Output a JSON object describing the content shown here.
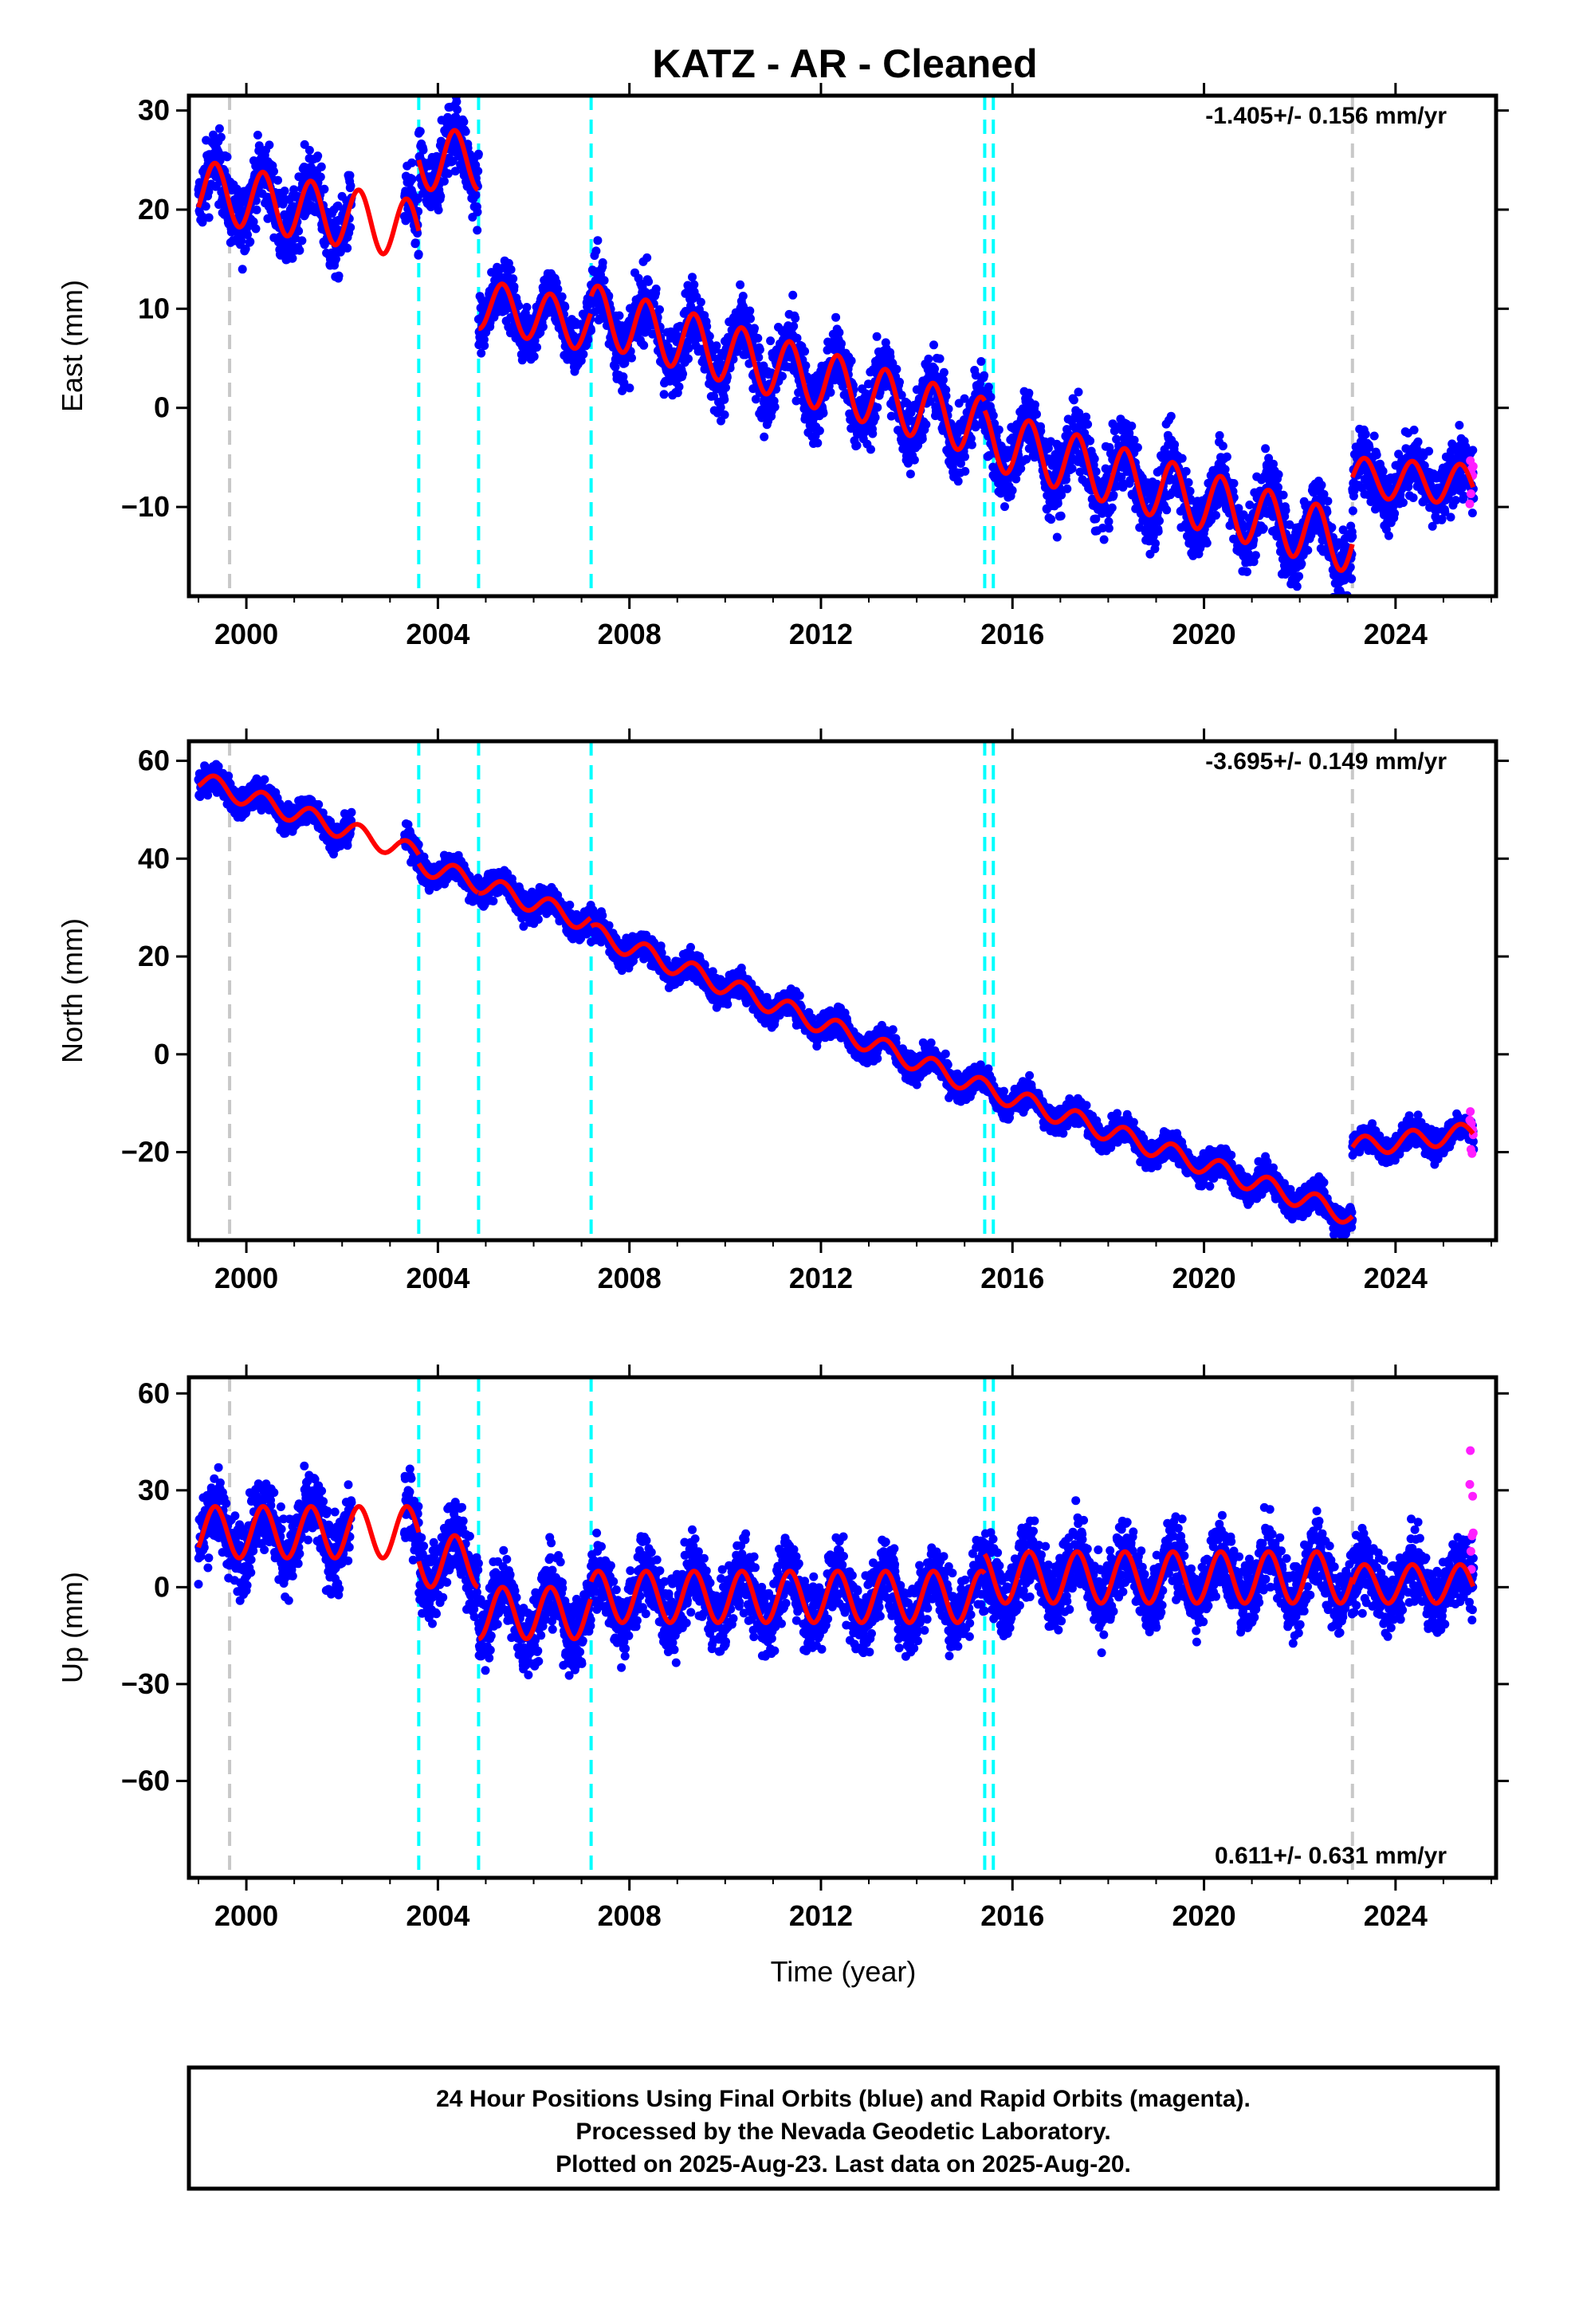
{
  "figure": {
    "title": "KATZ  - AR - Cleaned",
    "xlabel": "Time (year)",
    "footer": [
      "24 Hour Positions Using Final Orbits (blue) and Rapid Orbits (magenta).",
      "Processed by the Nevada Geodetic Laboratory.",
      "Plotted on 2025-Aug-23. Last data on 2025-Aug-20."
    ],
    "colors": {
      "final_orbits": "#0000ff",
      "rapid_orbits": "#ff1eff",
      "model": "#ff0000",
      "equipment_change": "#00ffff",
      "other_event": "#c8c8c8"
    },
    "xlim": [
      1998.8,
      2026.1
    ],
    "xticks": [
      2000,
      2004,
      2008,
      2012,
      2016,
      2020,
      2024
    ],
    "event_lines": {
      "gray": [
        1999.65,
        2023.1
      ],
      "cyan": [
        2003.6,
        2004.85,
        2007.2,
        2015.42,
        2015.6
      ]
    }
  },
  "chart_data": [
    {
      "type": "scatter",
      "ylabel": "East (mm)",
      "rate": "-1.405+/- 0.156 mm/yr",
      "rate_pos": "top-right",
      "ylim": [
        -19,
        31.5
      ],
      "yticks": [
        -10,
        0,
        10,
        20,
        30
      ],
      "segments": [
        [
          1999.0,
          2003.6,
          22,
          -0.9,
          3,
          2.5
        ],
        [
          2003.6,
          2004.85,
          25,
          0,
          3,
          2.5
        ],
        [
          2004.85,
          2007.2,
          10.5,
          -1.0,
          2.5,
          2.0
        ],
        [
          2007.2,
          2015.42,
          9.5,
          -1.4,
          3,
          2.5
        ],
        [
          2015.42,
          2023.1,
          -3,
          -1.4,
          3,
          2.5
        ],
        [
          2023.1,
          2025.63,
          -7,
          -0.3,
          2,
          2.2
        ]
      ],
      "gaps": [
        [
          2002.2,
          2003.3
        ]
      ],
      "rapid": [
        2025.3,
        2025.63,
        -7,
        3
      ]
    },
    {
      "type": "scatter",
      "ylabel": "North (mm)",
      "rate": "-3.695+/- 0.149 mm/yr",
      "rate_pos": "top-right",
      "ylim": [
        -38,
        64
      ],
      "yticks": [
        -20,
        0,
        20,
        40,
        60
      ],
      "segments": [
        [
          1999.0,
          2003.6,
          56,
          -3.3,
          2,
          2
        ],
        [
          2003.6,
          2004.85,
          39,
          -3.2,
          2,
          2
        ],
        [
          2004.85,
          2007.2,
          35,
          -3.5,
          2,
          2
        ],
        [
          2007.2,
          2015.42,
          25,
          -3.9,
          2,
          2
        ],
        [
          2015.42,
          2023.1,
          -7,
          -3.4,
          2,
          2
        ],
        [
          2023.1,
          2025.63,
          -19,
          1.2,
          2,
          2
        ]
      ],
      "gaps": [
        [
          2002.2,
          2003.3
        ]
      ],
      "rapid": [
        2025.3,
        2025.63,
        -16,
        4
      ]
    },
    {
      "type": "scatter",
      "ylabel": "Up (mm)",
      "rate": "0.611+/- 0.631 mm/yr",
      "rate_pos": "bottom-right",
      "ylim": [
        -90,
        65
      ],
      "yticks": [
        -60,
        -30,
        0,
        30,
        60
      ],
      "segments": [
        [
          1999.0,
          2003.6,
          17,
          0,
          8,
          8
        ],
        [
          2003.6,
          2004.85,
          8,
          0,
          8,
          8
        ],
        [
          2004.85,
          2007.2,
          -8,
          0,
          8,
          8
        ],
        [
          2007.2,
          2015.42,
          -3,
          0,
          8,
          8
        ],
        [
          2015.42,
          2023.1,
          3,
          0,
          8,
          8
        ],
        [
          2023.1,
          2025.63,
          1,
          0,
          6,
          7
        ]
      ],
      "gaps": [
        [
          2002.2,
          2003.3
        ]
      ],
      "rapid": [
        2025.3,
        2025.63,
        15,
        15
      ]
    }
  ]
}
